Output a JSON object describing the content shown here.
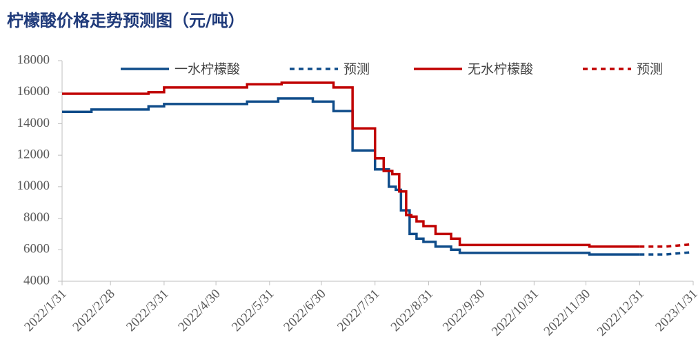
{
  "chart_data": {
    "type": "line",
    "title": "柠檬酸价格走势预测图（元/吨）",
    "xlim": [
      "2022/1/31",
      "2023/1/31"
    ],
    "xticks": [
      "2022/1/31",
      "2022/2/28",
      "2022/3/31",
      "2022/4/30",
      "2022/5/31",
      "2022/6/30",
      "2022/7/31",
      "2022/8/31",
      "2022/9/30",
      "2022/10/31",
      "2022/11/30",
      "2022/12/31",
      "2023/1/31"
    ],
    "ylim": [
      4000,
      18000
    ],
    "yticks": [
      4000,
      6000,
      8000,
      10000,
      12000,
      14000,
      16000,
      18000
    ],
    "grid": false,
    "legend": "top",
    "series": [
      {
        "name": "一水柠檬酸",
        "color": "#0f4c8a",
        "style": "solid",
        "step": true,
        "x": [
          "2022/1/31",
          "2022/2/17",
          "2022/3/22",
          "2022/3/31",
          "2022/5/18",
          "2022/6/5",
          "2022/6/25",
          "2022/7/7",
          "2022/7/18",
          "2022/7/31",
          "2022/8/8",
          "2022/8/12",
          "2022/8/15",
          "2022/8/20",
          "2022/8/24",
          "2022/8/28",
          "2022/9/4",
          "2022/9/13",
          "2022/9/18",
          "2022/12/2",
          "2022/12/31"
        ],
        "values": [
          14750,
          14900,
          15100,
          15250,
          15400,
          15600,
          15400,
          14800,
          12300,
          11100,
          10000,
          9800,
          8500,
          7000,
          6700,
          6500,
          6200,
          6000,
          5800,
          5700,
          5700
        ]
      },
      {
        "name": "预测",
        "color": "#0f4c8a",
        "style": "dashed",
        "step": false,
        "x": [
          "2022/12/31",
          "2023/1/15",
          "2023/1/31"
        ],
        "values": [
          5700,
          5700,
          5850
        ]
      },
      {
        "name": "无水柠檬酸",
        "color": "#c00000",
        "style": "solid",
        "step": true,
        "x": [
          "2022/1/31",
          "2022/3/22",
          "2022/3/31",
          "2022/5/18",
          "2022/6/7",
          "2022/7/7",
          "2022/7/18",
          "2022/7/31",
          "2022/8/5",
          "2022/8/10",
          "2022/8/14",
          "2022/8/18",
          "2022/8/21",
          "2022/8/24",
          "2022/8/28",
          "2022/9/4",
          "2022/9/13",
          "2022/9/18",
          "2022/12/2",
          "2022/12/31"
        ],
        "values": [
          15900,
          16000,
          16300,
          16500,
          16600,
          16300,
          13700,
          11800,
          11000,
          10800,
          9700,
          8200,
          8100,
          7800,
          7500,
          7000,
          6700,
          6300,
          6200,
          6200
        ]
      },
      {
        "name": "预测",
        "color": "#c00000",
        "style": "dashed",
        "step": false,
        "x": [
          "2022/12/31",
          "2023/1/15",
          "2023/1/31"
        ],
        "values": [
          6200,
          6200,
          6350
        ]
      }
    ]
  }
}
